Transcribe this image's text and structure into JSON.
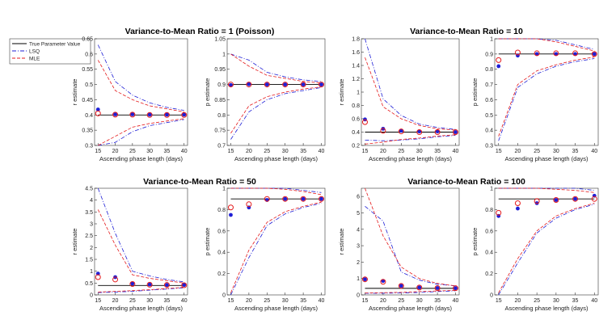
{
  "legend": {
    "entries": [
      {
        "label": "True Parameter Value",
        "color": "#000000",
        "dash": "solid"
      },
      {
        "label": "LSQ",
        "color": "#1f1fd6",
        "dash": "dashdot"
      },
      {
        "label": "MLE",
        "color": "#e41a1c",
        "dash": "dashed"
      }
    ]
  },
  "colors": {
    "true": "#000000",
    "lsq": "#1f1fd6",
    "mle": "#e41a1c"
  },
  "chart_data": [
    {
      "group_title": "Variance-to-Mean Ratio = 1 (Poisson)",
      "subplots": [
        {
          "type": "line",
          "xlabel": "Ascending phase length (days)",
          "ylabel": "r estimate",
          "x": [
            15,
            20,
            25,
            30,
            35,
            40
          ],
          "xticks": [
            15,
            20,
            25,
            30,
            35,
            40
          ],
          "ylim": [
            0.3,
            0.65
          ],
          "yticks": [
            0.3,
            0.35,
            0.4,
            0.45,
            0.5,
            0.55,
            0.6,
            0.65
          ],
          "ytick_labels": [
            "0.3",
            "0.35",
            "0.4",
            "0.45",
            "0.5",
            "0.55",
            "0.6",
            "0.65"
          ],
          "true_value": 0.4,
          "lsq_point": [
            0.418,
            0.402,
            0.402,
            0.401,
            0.401,
            0.401
          ],
          "mle_point": [
            0.405,
            0.401,
            0.401,
            0.4,
            0.4,
            0.4
          ],
          "lsq_upper": [
            0.63,
            0.51,
            0.465,
            0.44,
            0.425,
            0.415
          ],
          "lsq_lower": [
            0.3,
            0.31,
            0.345,
            0.365,
            0.375,
            0.385
          ],
          "mle_upper": [
            0.58,
            0.48,
            0.45,
            0.43,
            0.42,
            0.41
          ],
          "mle_lower": [
            0.3,
            0.33,
            0.36,
            0.372,
            0.38,
            0.388
          ]
        },
        {
          "type": "line",
          "xlabel": "Ascending phase length (days)",
          "ylabel": "p estimate",
          "x": [
            15,
            20,
            25,
            30,
            35,
            40
          ],
          "xticks": [
            15,
            20,
            25,
            30,
            35,
            40
          ],
          "ylim": [
            0.7,
            1.05
          ],
          "yticks": [
            0.7,
            0.75,
            0.8,
            0.85,
            0.9,
            0.95,
            1,
            1.05
          ],
          "ytick_labels": [
            "0.7",
            "0.75",
            "0.8",
            "0.85",
            "0.9",
            "0.95",
            "1",
            "1.05"
          ],
          "true_value": 0.9,
          "lsq_point": [
            0.898,
            0.901,
            0.9,
            0.9,
            0.9,
            0.9
          ],
          "mle_point": [
            0.9,
            0.9,
            0.9,
            0.9,
            0.9,
            0.9
          ],
          "lsq_upper": [
            1.0,
            0.98,
            0.94,
            0.925,
            0.915,
            0.91
          ],
          "lsq_lower": [
            0.72,
            0.81,
            0.85,
            0.87,
            0.88,
            0.89
          ],
          "mle_upper": [
            1.0,
            0.96,
            0.93,
            0.92,
            0.91,
            0.905
          ],
          "mle_lower": [
            0.74,
            0.83,
            0.86,
            0.875,
            0.885,
            0.892
          ]
        }
      ]
    },
    {
      "group_title": "Variance-to-Mean Ratio = 10",
      "subplots": [
        {
          "type": "line",
          "xlabel": "Ascending phase length (days)",
          "ylabel": "r estimate",
          "x": [
            15,
            20,
            25,
            30,
            35,
            40
          ],
          "xticks": [
            15,
            20,
            25,
            30,
            35,
            40
          ],
          "ylim": [
            0.2,
            1.8
          ],
          "yticks": [
            0.2,
            0.4,
            0.6,
            0.8,
            1,
            1.2,
            1.4,
            1.6,
            1.8
          ],
          "ytick_labels": [
            "0.2",
            "0.4",
            "0.6",
            "0.8",
            "1",
            "1.2",
            "1.4",
            "1.6",
            "1.8"
          ],
          "true_value": 0.4,
          "lsq_point": [
            0.59,
            0.45,
            0.42,
            0.41,
            0.41,
            0.4
          ],
          "mle_point": [
            0.55,
            0.42,
            0.41,
            0.4,
            0.4,
            0.4
          ],
          "lsq_upper": [
            1.8,
            0.9,
            0.65,
            0.52,
            0.47,
            0.44
          ],
          "lsq_lower": [
            0.28,
            0.27,
            0.28,
            0.3,
            0.33,
            0.35
          ],
          "mle_upper": [
            1.52,
            0.78,
            0.6,
            0.5,
            0.45,
            0.43
          ],
          "mle_lower": [
            0.22,
            0.25,
            0.29,
            0.31,
            0.34,
            0.36
          ]
        },
        {
          "type": "line",
          "xlabel": "Ascending phase length (days)",
          "ylabel": "p estimate",
          "x": [
            15,
            20,
            25,
            30,
            35,
            40
          ],
          "xticks": [
            15,
            20,
            25,
            30,
            35,
            40
          ],
          "ylim": [
            0.3,
            1.0
          ],
          "yticks": [
            0.3,
            0.4,
            0.5,
            0.6,
            0.7,
            0.8,
            0.9,
            1
          ],
          "ytick_labels": [
            "0.3",
            "0.4",
            "0.5",
            "0.6",
            "0.7",
            "0.8",
            "0.9",
            "1"
          ],
          "true_value": 0.9,
          "lsq_point": [
            0.82,
            0.89,
            0.9,
            0.9,
            0.9,
            0.9
          ],
          "mle_point": [
            0.86,
            0.91,
            0.905,
            0.905,
            0.905,
            0.9
          ],
          "lsq_upper": [
            1.0,
            1.0,
            1.0,
            0.99,
            0.96,
            0.93
          ],
          "lsq_lower": [
            0.33,
            0.68,
            0.77,
            0.82,
            0.85,
            0.87
          ],
          "mle_upper": [
            1.0,
            1.0,
            1.0,
            0.98,
            0.95,
            0.92
          ],
          "mle_lower": [
            0.36,
            0.7,
            0.79,
            0.83,
            0.86,
            0.88
          ]
        }
      ]
    },
    {
      "group_title": "Variance-to-Mean Ratio = 50",
      "subplots": [
        {
          "type": "line",
          "xlabel": "Ascending phase length (days)",
          "ylabel": "r estimate",
          "x": [
            15,
            20,
            25,
            30,
            35,
            40
          ],
          "xticks": [
            15,
            20,
            25,
            30,
            35,
            40
          ],
          "ylim": [
            0,
            4.5
          ],
          "yticks": [
            0,
            0.5,
            1,
            1.5,
            2,
            2.5,
            3,
            3.5,
            4,
            4.5
          ],
          "ytick_labels": [
            "0",
            "0.5",
            "1",
            "1.5",
            "2",
            "2.5",
            "3",
            "3.5",
            "4",
            "4.5"
          ],
          "true_value": 0.4,
          "lsq_point": [
            0.9,
            0.75,
            0.48,
            0.44,
            0.42,
            0.42
          ],
          "mle_point": [
            0.75,
            0.65,
            0.46,
            0.43,
            0.42,
            0.41
          ],
          "lsq_upper": [
            4.5,
            2.6,
            1.0,
            0.8,
            0.65,
            0.55
          ],
          "lsq_lower": [
            0.1,
            0.12,
            0.15,
            0.2,
            0.25,
            0.3
          ],
          "mle_upper": [
            3.6,
            2.1,
            0.85,
            0.7,
            0.6,
            0.5
          ],
          "mle_lower": [
            0.12,
            0.15,
            0.18,
            0.22,
            0.27,
            0.32
          ]
        },
        {
          "type": "line",
          "xlabel": "Ascending phase length (days)",
          "ylabel": "p estimate",
          "x": [
            15,
            20,
            25,
            30,
            35,
            40
          ],
          "xticks": [
            15,
            20,
            25,
            30,
            35,
            40
          ],
          "ylim": [
            0,
            1.0
          ],
          "yticks": [
            0,
            0.2,
            0.4,
            0.6,
            0.8,
            1
          ],
          "ytick_labels": [
            "0",
            "0.2",
            "0.4",
            "0.6",
            "0.8",
            "1"
          ],
          "true_value": 0.9,
          "lsq_point": [
            0.75,
            0.82,
            0.89,
            0.9,
            0.9,
            0.9
          ],
          "mle_point": [
            0.82,
            0.85,
            0.9,
            0.9,
            0.9,
            0.9
          ],
          "lsq_upper": [
            1.0,
            1.0,
            1.0,
            1.0,
            0.98,
            0.96
          ],
          "lsq_lower": [
            0.0,
            0.35,
            0.65,
            0.76,
            0.82,
            0.86
          ],
          "mle_upper": [
            1.0,
            1.0,
            1.0,
            0.99,
            0.97,
            0.94
          ],
          "mle_lower": [
            0.02,
            0.42,
            0.68,
            0.78,
            0.83,
            0.87
          ]
        }
      ]
    },
    {
      "group_title": "Variance-to-Mean Ratio = 100",
      "subplots": [
        {
          "type": "line",
          "xlabel": "Ascending phase length (days)",
          "ylabel": "r estimate",
          "x": [
            15,
            20,
            25,
            30,
            35,
            40
          ],
          "xticks": [
            15,
            20,
            25,
            30,
            35,
            40
          ],
          "ylim": [
            0,
            6.5
          ],
          "yticks": [
            0,
            1,
            2,
            3,
            4,
            5,
            6
          ],
          "ytick_labels": [
            "0",
            "1",
            "2",
            "3",
            "4",
            "5",
            "6"
          ],
          "true_value": 0.4,
          "lsq_point": [
            0.95,
            0.85,
            0.55,
            0.45,
            0.42,
            0.41
          ],
          "mle_point": [
            0.95,
            0.8,
            0.55,
            0.45,
            0.42,
            0.41
          ],
          "lsq_upper": [
            5.4,
            4.5,
            1.4,
            0.9,
            0.65,
            0.55
          ],
          "lsq_lower": [
            0.1,
            0.1,
            0.12,
            0.15,
            0.2,
            0.25
          ],
          "mle_upper": [
            6.5,
            3.6,
            1.7,
            1.0,
            0.7,
            0.55
          ],
          "mle_lower": [
            0.12,
            0.14,
            0.16,
            0.2,
            0.24,
            0.28
          ]
        },
        {
          "type": "line",
          "xlabel": "Ascending phase length (days)",
          "ylabel": "p estimate",
          "x": [
            15,
            20,
            25,
            30,
            35,
            40
          ],
          "xticks": [
            15,
            20,
            25,
            30,
            35,
            40
          ],
          "ylim": [
            0,
            1.0
          ],
          "yticks": [
            0,
            0.2,
            0.4,
            0.6,
            0.8,
            1
          ],
          "ytick_labels": [
            "0",
            "0.2",
            "0.4",
            "0.6",
            "0.8",
            "1"
          ],
          "true_value": 0.9,
          "lsq_point": [
            0.74,
            0.81,
            0.86,
            0.89,
            0.9,
            0.93
          ],
          "mle_point": [
            0.77,
            0.86,
            0.88,
            0.89,
            0.9,
            0.9
          ],
          "lsq_upper": [
            1.0,
            1.0,
            1.0,
            1.0,
            1.0,
            0.98
          ],
          "lsq_lower": [
            0.0,
            0.3,
            0.58,
            0.72,
            0.8,
            0.85
          ],
          "mle_upper": [
            1.0,
            1.0,
            1.0,
            0.99,
            0.98,
            0.96
          ],
          "mle_lower": [
            0.02,
            0.34,
            0.6,
            0.74,
            0.81,
            0.86
          ]
        }
      ]
    }
  ]
}
